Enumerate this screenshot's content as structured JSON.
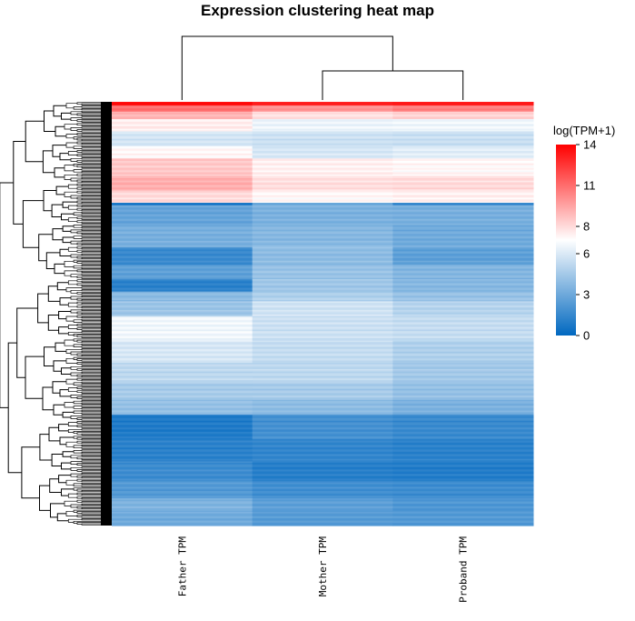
{
  "chart_data": {
    "type": "heatmap",
    "title": "Expression clustering heat map",
    "columns": [
      "Father TPM",
      "Mother TPM",
      "Proband TPM"
    ],
    "column_dendrogram": "(Father TPM, (Mother TPM, Proband TPM))",
    "colorbar": {
      "title": "log(TPM+1)",
      "min": 0,
      "max": 14,
      "ticks": [
        0,
        3,
        6,
        8,
        11,
        14
      ],
      "colors": [
        "#0068c0",
        "#ffffff",
        "#ff0000"
      ],
      "midpoint": 7
    },
    "row_blocks": [
      {
        "rows": 3,
        "values": [
          13.5,
          13.0,
          13.2
        ]
      },
      {
        "rows": 5,
        "values": [
          11.0,
          10.0,
          10.5
        ]
      },
      {
        "rows": 6,
        "values": [
          9.0,
          7.8,
          8.2
        ]
      },
      {
        "rows": 10,
        "values": [
          7.5,
          6.5,
          6.6
        ]
      },
      {
        "rows": 12,
        "values": [
          5.8,
          5.6,
          5.5
        ]
      },
      {
        "rows": 10,
        "values": [
          7.2,
          5.9,
          6.2
        ]
      },
      {
        "rows": 14,
        "values": [
          8.5,
          7.4,
          7.2
        ]
      },
      {
        "rows": 12,
        "values": [
          9.2,
          7.9,
          8.0
        ]
      },
      {
        "rows": 10,
        "values": [
          8.0,
          7.2,
          7.4
        ]
      },
      {
        "rows": 2,
        "values": [
          0.8,
          3.0,
          1.5
        ]
      },
      {
        "rows": 16,
        "values": [
          2.8,
          3.4,
          3.3
        ]
      },
      {
        "rows": 18,
        "values": [
          3.3,
          3.7,
          3.1
        ]
      },
      {
        "rows": 14,
        "values": [
          1.6,
          3.9,
          2.6
        ]
      },
      {
        "rows": 12,
        "values": [
          2.6,
          4.2,
          3.6
        ]
      },
      {
        "rows": 10,
        "values": [
          1.2,
          4.4,
          3.7
        ]
      },
      {
        "rows": 8,
        "values": [
          3.8,
          4.8,
          4.2
        ]
      },
      {
        "rows": 12,
        "values": [
          4.3,
          5.7,
          5.0
        ]
      },
      {
        "rows": 20,
        "values": [
          6.6,
          5.6,
          5.4
        ]
      },
      {
        "rows": 18,
        "values": [
          5.9,
          5.4,
          4.8
        ]
      },
      {
        "rows": 16,
        "values": [
          5.2,
          5.2,
          4.5
        ]
      },
      {
        "rows": 14,
        "values": [
          4.6,
          4.6,
          4.1
        ]
      },
      {
        "rows": 12,
        "values": [
          4.1,
          3.9,
          3.4
        ]
      },
      {
        "rows": 20,
        "values": [
          0.9,
          1.9,
          1.6
        ]
      },
      {
        "rows": 18,
        "values": [
          1.2,
          1.4,
          1.2
        ]
      },
      {
        "rows": 16,
        "values": [
          1.7,
          1.1,
          1.0
        ]
      },
      {
        "rows": 14,
        "values": [
          2.3,
          1.8,
          1.7
        ]
      },
      {
        "rows": 10,
        "values": [
          3.5,
          2.6,
          2.2
        ]
      },
      {
        "rows": 12,
        "values": [
          3.1,
          2.4,
          2.3
        ]
      }
    ]
  }
}
